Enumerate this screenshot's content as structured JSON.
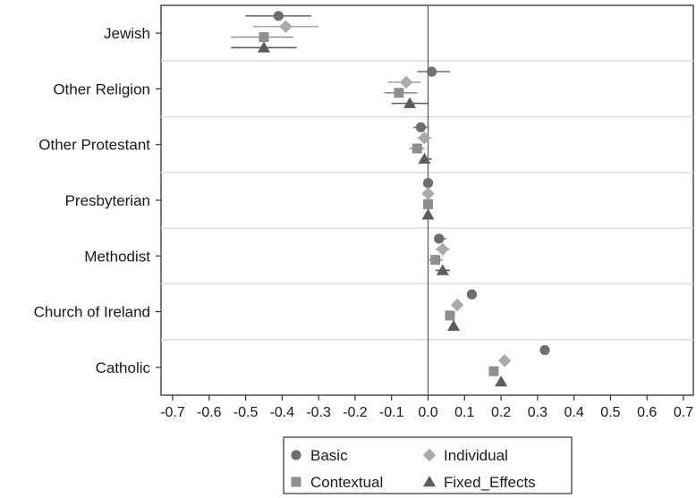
{
  "chart_data": {
    "type": "scatter",
    "subtype": "coefficient-plot",
    "title": "",
    "xlabel": "",
    "ylabel": "",
    "xlim": [
      -0.7,
      0.7
    ],
    "x_ticks": [
      -0.7,
      -0.6,
      -0.5,
      -0.4,
      -0.3,
      -0.2,
      -0.1,
      0.0,
      0.1,
      0.2,
      0.3,
      0.4,
      0.5,
      0.6,
      0.7
    ],
    "x_tick_labels": [
      "-0.7",
      "-0.6",
      "-0.5",
      "-0.4",
      "-0.3",
      "-0.2",
      "-0.1",
      "0.0",
      "0.1",
      "0.2",
      "0.3",
      "0.4",
      "0.5",
      "0.6",
      "0.7"
    ],
    "reference_line_x": 0,
    "grid": "horizontal separators between categories",
    "legend_position": "bottom",
    "categories": [
      "Jewish",
      "Other Religion",
      "Other Protestant",
      "Presbyterian",
      "Methodist",
      "Church of Ireland",
      "Catholic"
    ],
    "series": [
      {
        "name": "Basic",
        "marker": "circle",
        "color": "#6e6e6e",
        "points": [
          {
            "estimate": -0.41,
            "ci": [
              -0.5,
              -0.32
            ]
          },
          {
            "estimate": 0.01,
            "ci": [
              -0.03,
              0.06
            ]
          },
          {
            "estimate": -0.02,
            "ci": [
              -0.04,
              0.0
            ]
          },
          {
            "estimate": 0.0,
            "ci": [
              0.0,
              0.0
            ]
          },
          {
            "estimate": 0.03,
            "ci": [
              0.02,
              0.05
            ]
          },
          {
            "estimate": 0.12,
            "ci": [
              0.12,
              0.12
            ]
          },
          {
            "estimate": 0.32,
            "ci": [
              0.32,
              0.32
            ]
          }
        ]
      },
      {
        "name": "Individual",
        "marker": "diamond",
        "color": "#aaaaaa",
        "points": [
          {
            "estimate": -0.39,
            "ci": [
              -0.48,
              -0.3
            ]
          },
          {
            "estimate": -0.06,
            "ci": [
              -0.11,
              -0.02
            ]
          },
          {
            "estimate": -0.01,
            "ci": [
              -0.03,
              0.01
            ]
          },
          {
            "estimate": 0.0,
            "ci": [
              0.0,
              0.0
            ]
          },
          {
            "estimate": 0.04,
            "ci": [
              0.02,
              0.06
            ]
          },
          {
            "estimate": 0.08,
            "ci": [
              0.08,
              0.08
            ]
          },
          {
            "estimate": 0.21,
            "ci": [
              0.21,
              0.21
            ]
          }
        ]
      },
      {
        "name": "Contextual",
        "marker": "square",
        "color": "#8e8e8e",
        "points": [
          {
            "estimate": -0.45,
            "ci": [
              -0.54,
              -0.37
            ]
          },
          {
            "estimate": -0.08,
            "ci": [
              -0.12,
              -0.03
            ]
          },
          {
            "estimate": -0.03,
            "ci": [
              -0.05,
              -0.01
            ]
          },
          {
            "estimate": 0.0,
            "ci": [
              0.0,
              0.0
            ]
          },
          {
            "estimate": 0.02,
            "ci": [
              0.0,
              0.04
            ]
          },
          {
            "estimate": 0.06,
            "ci": [
              0.06,
              0.06
            ]
          },
          {
            "estimate": 0.18,
            "ci": [
              0.18,
              0.18
            ]
          }
        ]
      },
      {
        "name": "Fixed_Effects",
        "marker": "triangle",
        "color": "#5c5c5c",
        "points": [
          {
            "estimate": -0.45,
            "ci": [
              -0.54,
              -0.36
            ]
          },
          {
            "estimate": -0.05,
            "ci": [
              -0.1,
              0.0
            ]
          },
          {
            "estimate": -0.01,
            "ci": [
              -0.02,
              0.01
            ]
          },
          {
            "estimate": 0.0,
            "ci": [
              0.0,
              0.0
            ]
          },
          {
            "estimate": 0.04,
            "ci": [
              0.02,
              0.06
            ]
          },
          {
            "estimate": 0.07,
            "ci": [
              0.07,
              0.07
            ]
          },
          {
            "estimate": 0.2,
            "ci": [
              0.2,
              0.2
            ]
          }
        ]
      }
    ],
    "legend": {
      "entries": [
        "Basic",
        "Individual",
        "Contextual",
        "Fixed_Effects"
      ],
      "layout": "2x2"
    }
  }
}
